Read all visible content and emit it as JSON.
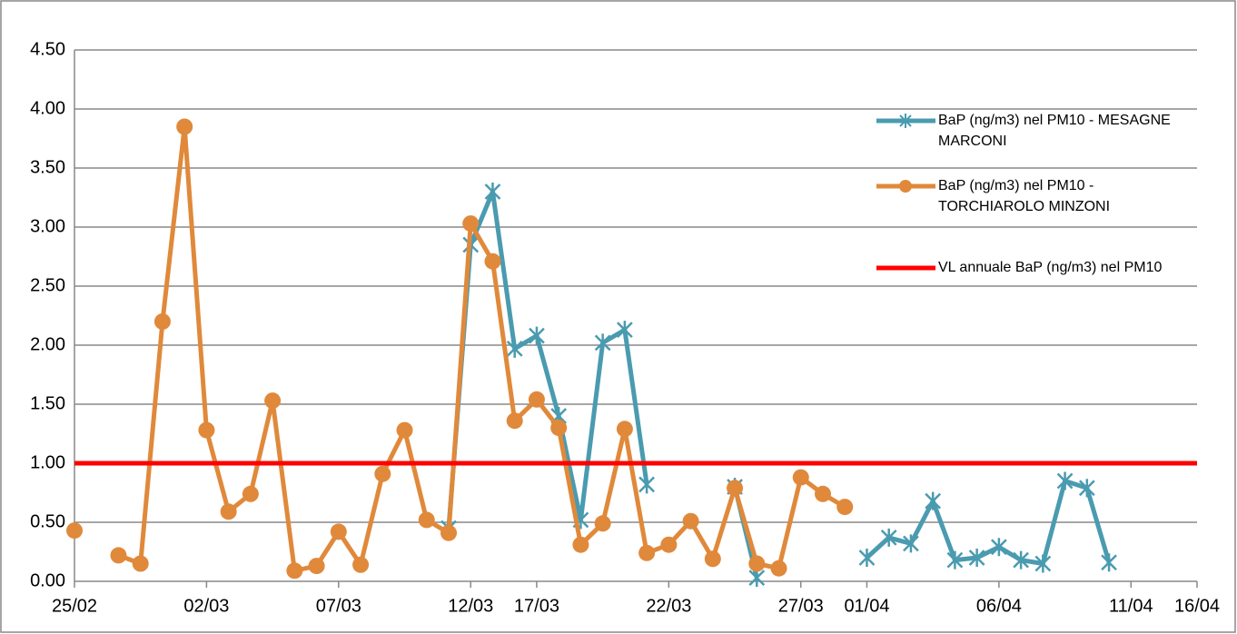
{
  "chart_data": {
    "type": "line",
    "categories": [
      "25/02",
      null,
      null,
      null,
      null,
      null,
      "02/03",
      null,
      null,
      null,
      null,
      null,
      "07/03",
      null,
      null,
      null,
      null,
      null,
      "12/03",
      null,
      null,
      "17/03",
      null,
      null,
      null,
      null,
      null,
      "22/03",
      null,
      null,
      null,
      null,
      null,
      "27/03",
      null,
      null,
      "01/04",
      null,
      null,
      null,
      null,
      null,
      "06/04",
      null,
      null,
      null,
      null,
      null,
      "11/04",
      null,
      null,
      "16/04"
    ],
    "series": [
      {
        "name": "BaP (ng/m3)  nel PM10 - MESAGNE MARCONI",
        "color": "#4a9bb0",
        "marker": "star",
        "values": [
          null,
          null,
          null,
          null,
          null,
          null,
          null,
          null,
          null,
          null,
          null,
          null,
          null,
          null,
          null,
          null,
          null,
          0.45,
          2.85,
          3.3,
          1.97,
          2.08,
          1.4,
          0.52,
          2.02,
          2.13,
          0.82,
          null,
          null,
          null,
          0.8,
          0.03,
          null,
          null,
          null,
          null,
          0.2,
          0.37,
          0.32,
          0.68,
          0.18,
          0.2,
          0.29,
          0.18,
          0.15,
          0.85,
          0.79,
          0.16,
          null,
          null,
          null,
          null
        ]
      },
      {
        "name": "BaP (ng/m3) nel PM10 - TORCHIAROLO MINZONI",
        "color": "#e0893b",
        "marker": "circle",
        "values": [
          0.43,
          null,
          0.22,
          0.15,
          2.2,
          3.85,
          1.28,
          0.59,
          0.74,
          1.53,
          0.09,
          0.13,
          0.42,
          0.14,
          0.91,
          1.28,
          0.52,
          0.41,
          3.03,
          2.71,
          1.36,
          1.54,
          1.3,
          0.31,
          0.49,
          1.29,
          0.24,
          0.31,
          0.51,
          0.19,
          0.79,
          0.15,
          0.11,
          0.88,
          0.74,
          0.63,
          null,
          null,
          null,
          null,
          null,
          null,
          null,
          null,
          null,
          null,
          null,
          null,
          null,
          null,
          null,
          null
        ]
      },
      {
        "name": "VL annuale BaP (ng/m3) nel PM10",
        "color": "#ff0000",
        "marker": "none",
        "values": [
          1,
          1,
          1,
          1,
          1,
          1,
          1,
          1,
          1,
          1,
          1,
          1,
          1,
          1,
          1,
          1,
          1,
          1,
          1,
          1,
          1,
          1,
          1,
          1,
          1,
          1,
          1,
          1,
          1,
          1,
          1,
          1,
          1,
          1,
          1,
          1,
          1,
          1,
          1,
          1,
          1,
          1,
          1,
          1,
          1,
          1,
          1,
          1,
          1,
          1,
          1,
          1
        ]
      }
    ],
    "ylim": [
      0,
      4.5
    ],
    "yticks": [
      {
        "value": 0,
        "label": "0.00"
      },
      {
        "value": 0.5,
        "label": "0.50"
      },
      {
        "value": 1,
        "label": "1.00"
      },
      {
        "value": 1.5,
        "label": "1.50"
      },
      {
        "value": 2,
        "label": "2.00"
      },
      {
        "value": 2.5,
        "label": "2.50"
      },
      {
        "value": 3,
        "label": "3.00"
      },
      {
        "value": 3.5,
        "label": "3.50"
      },
      {
        "value": 4,
        "label": "4.00"
      },
      {
        "value": 4.5,
        "label": "4.50"
      }
    ],
    "grid": true,
    "legend": "right"
  }
}
